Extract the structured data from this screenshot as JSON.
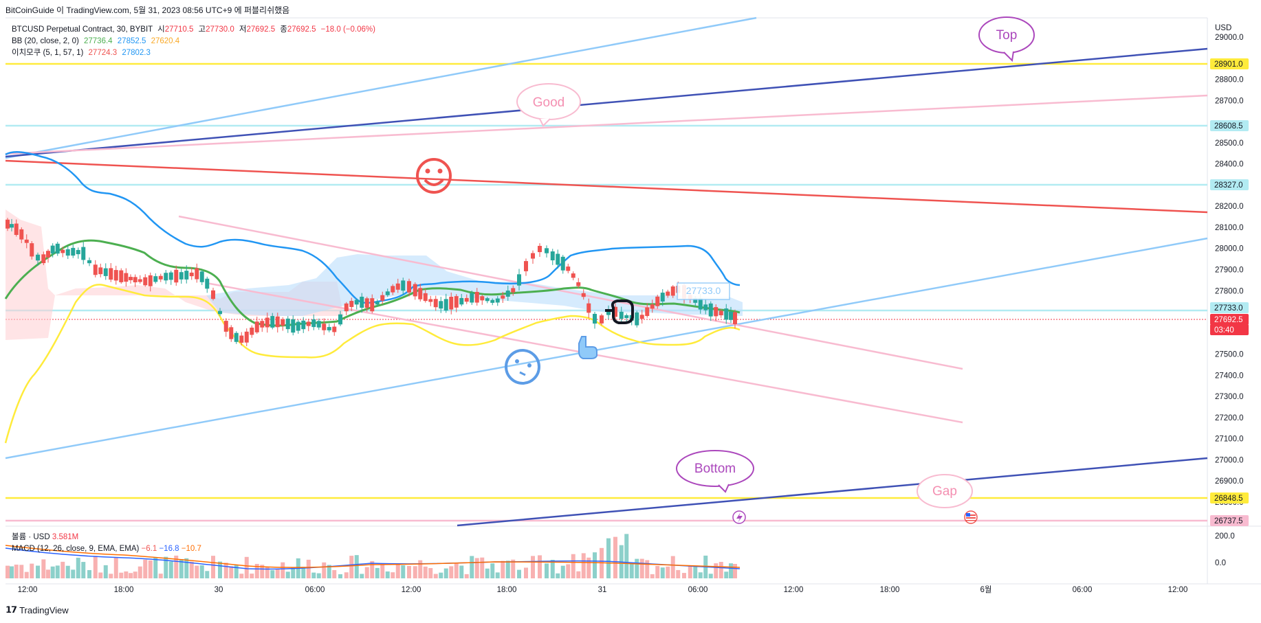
{
  "attribution": "BitCoinGuide 이 TradingView.com, 5월 31, 2023 08:56 UTC+9 에 퍼블리쉬했음",
  "legend": {
    "symbol": "BTCUSD Perpetual Contract, 30, BYBIT",
    "open_label": "시",
    "open": "27710.5",
    "high_label": "고",
    "high": "27730.0",
    "low_label": "저",
    "low": "27692.5",
    "close_label": "종",
    "close": "27692.5",
    "change": "−18.0 (−0.06%)",
    "bb_label": "BB (20, close, 2, 0)",
    "bb_basis": "27736.4",
    "bb_upper": "27852.5",
    "bb_lower": "27620.4",
    "ichimoku_label": "이치모쿠 (5, 1, 57, 1)",
    "ichimoku_a": "27724.3",
    "ichimoku_b": "27802.3"
  },
  "macd_legend": {
    "volume_label": "볼륨 · USD",
    "volume_value": "3.581M",
    "macd_label": "MACD (12, 26, close, 9, EMA, EMA)",
    "hist": "−6.1",
    "macd": "−16.8",
    "signal": "−10.7"
  },
  "price_axis": {
    "currency": "USD",
    "ticks": [
      "29000.0",
      "28800.0",
      "28700.0",
      "28500.0",
      "28400.0",
      "28200.0",
      "28100.0",
      "28000.0",
      "27900.0",
      "27800.0",
      "27500.0",
      "27400.0",
      "27300.0",
      "27200.0",
      "27100.0",
      "27000.0",
      "26900.0",
      "26800.0"
    ],
    "tags": [
      {
        "text": "28901.0",
        "bg": "#ffeb3b",
        "fg": "#131722"
      },
      {
        "text": "28608.5",
        "bg": "#b2ebf2",
        "fg": "#131722"
      },
      {
        "text": "28327.0",
        "bg": "#b2ebf2",
        "fg": "#131722"
      },
      {
        "text": "27733.0",
        "bg": "#b2ebf2",
        "fg": "#131722"
      },
      {
        "text": "27692.5",
        "bg": "#f23645",
        "fg": "#ffffff"
      },
      {
        "text": "03:40",
        "bg": "#f23645",
        "fg": "#ffffff"
      },
      {
        "text": "26848.5",
        "bg": "#ffeb3b",
        "fg": "#131722"
      },
      {
        "text": "26737.5",
        "bg": "#f8bbd0",
        "fg": "#131722"
      }
    ]
  },
  "macd_axis": {
    "ticks": [
      "200.0",
      "0.0"
    ]
  },
  "time_axis": [
    "12:00",
    "18:00",
    "30",
    "06:00",
    "12:00",
    "18:00",
    "31",
    "06:00",
    "12:00",
    "18:00",
    "6월",
    "06:00",
    "12:00"
  ],
  "annotations": {
    "top": "Top",
    "good": "Good",
    "bottom": "Bottom",
    "gap": "Gap",
    "price_note": "27733.0"
  },
  "colors": {
    "up": "#26a69a",
    "down": "#ef5350",
    "bb_basis": "#4caf50",
    "bb_upper": "#2196f3",
    "bb_lower": "#ffeb3b",
    "trend_light_blue": "#90caf9",
    "trend_dark_blue": "#3f51b5",
    "trend_pink": "#f8bbd0",
    "trend_red": "#ef5350",
    "level_yellow": "#ffeb3b",
    "level_cyan": "#b2ebf2"
  },
  "footer": {
    "brand": "TradingView"
  }
}
